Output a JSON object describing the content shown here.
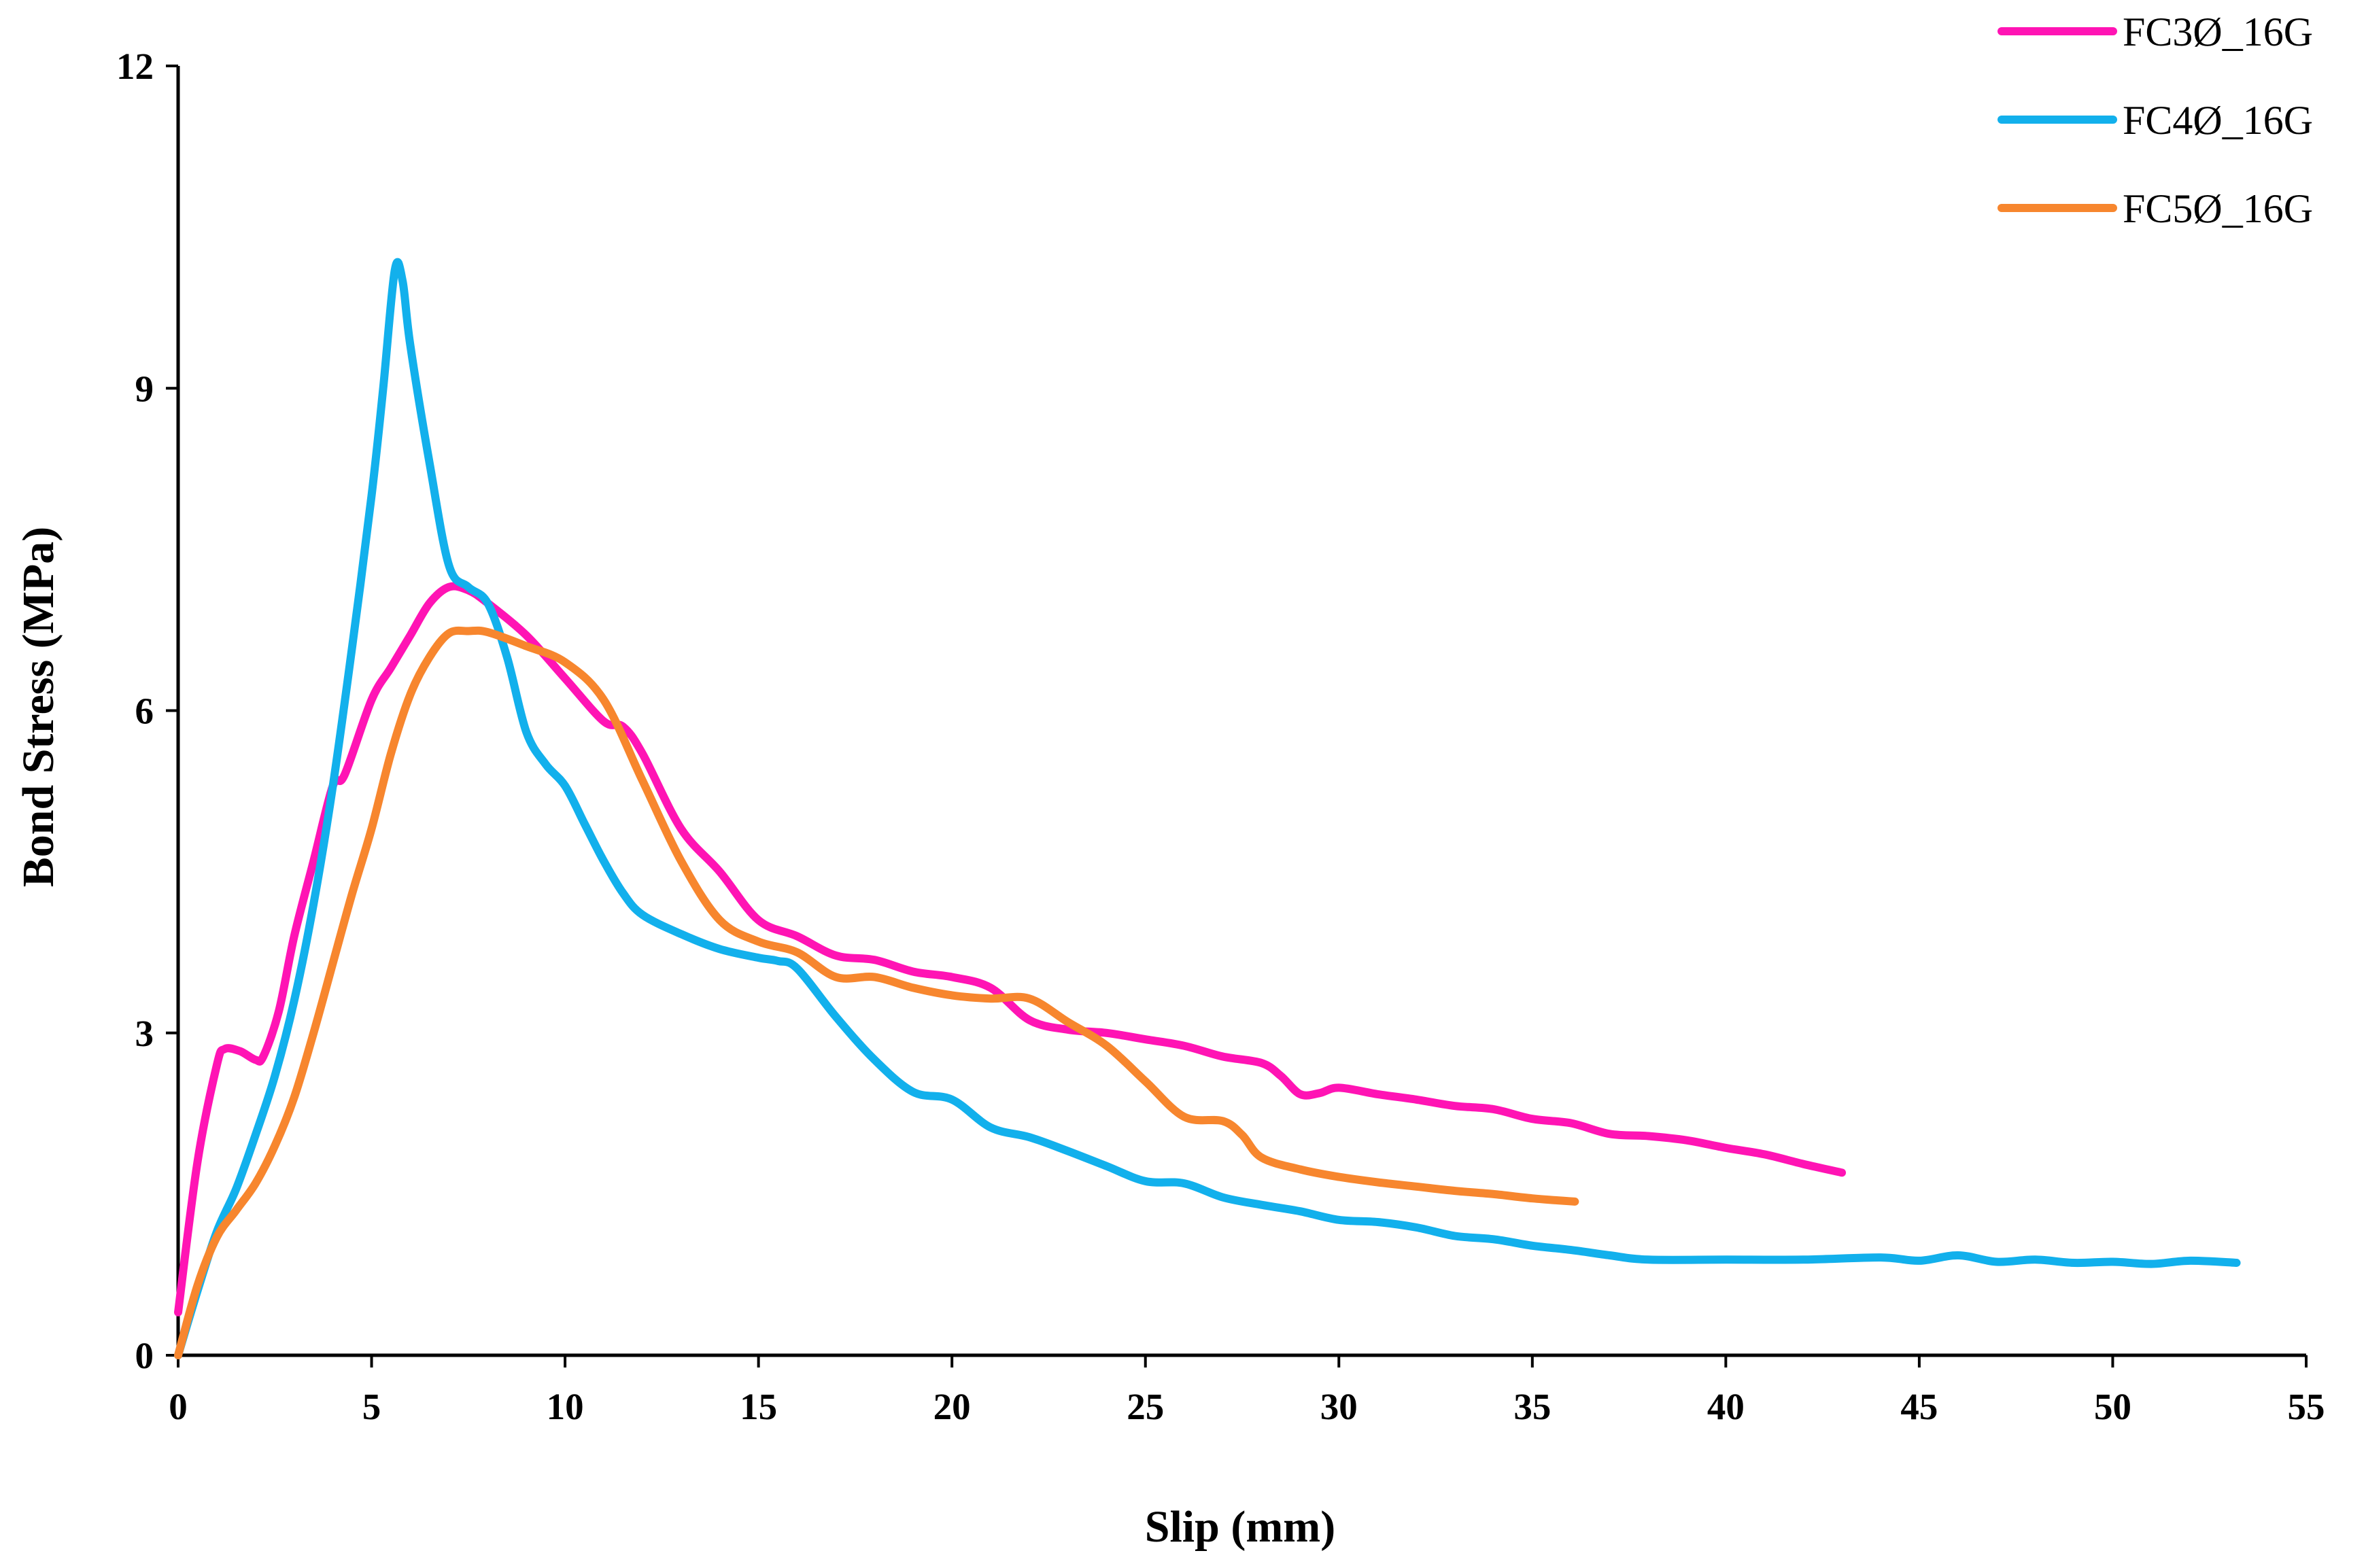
{
  "chart_data": {
    "type": "line",
    "title": "",
    "xlabel": "Slip (mm)",
    "ylabel": "Bond Stress (MPa)",
    "xlim": [
      0,
      55
    ],
    "ylim": [
      0,
      12
    ],
    "xticks": [
      0,
      5,
      10,
      15,
      20,
      25,
      30,
      35,
      40,
      45,
      50,
      55
    ],
    "yticks": [
      0,
      3,
      6,
      9,
      12
    ],
    "grid": false,
    "legend_position": "top-right",
    "series": [
      {
        "name": "FC3Ø_16G",
        "color": "#ff14b4",
        "points": [
          [
            0,
            0.4
          ],
          [
            0.5,
            1.8
          ],
          [
            1.0,
            2.7
          ],
          [
            1.2,
            2.85
          ],
          [
            1.6,
            2.83
          ],
          [
            2.0,
            2.75
          ],
          [
            2.2,
            2.78
          ],
          [
            2.6,
            3.2
          ],
          [
            3.0,
            3.9
          ],
          [
            3.5,
            4.6
          ],
          [
            4.0,
            5.3
          ],
          [
            4.3,
            5.4
          ],
          [
            5.0,
            6.1
          ],
          [
            5.5,
            6.4
          ],
          [
            6.0,
            6.7
          ],
          [
            6.5,
            7.0
          ],
          [
            7.0,
            7.15
          ],
          [
            7.5,
            7.12
          ],
          [
            8.0,
            7.0
          ],
          [
            9.0,
            6.7
          ],
          [
            10.0,
            6.3
          ],
          [
            11.0,
            5.9
          ],
          [
            11.5,
            5.85
          ],
          [
            12.0,
            5.6
          ],
          [
            13.0,
            4.9
          ],
          [
            14.0,
            4.5
          ],
          [
            15.0,
            4.05
          ],
          [
            16.0,
            3.9
          ],
          [
            17.0,
            3.72
          ],
          [
            18.0,
            3.68
          ],
          [
            19.0,
            3.57
          ],
          [
            20.0,
            3.52
          ],
          [
            21.0,
            3.42
          ],
          [
            22.0,
            3.12
          ],
          [
            23.0,
            3.03
          ],
          [
            24.0,
            3.0
          ],
          [
            25.0,
            2.94
          ],
          [
            26.0,
            2.88
          ],
          [
            27.0,
            2.78
          ],
          [
            28.0,
            2.72
          ],
          [
            28.5,
            2.6
          ],
          [
            29.0,
            2.43
          ],
          [
            29.5,
            2.44
          ],
          [
            30.0,
            2.49
          ],
          [
            31.0,
            2.43
          ],
          [
            32.0,
            2.38
          ],
          [
            33.0,
            2.32
          ],
          [
            34.0,
            2.29
          ],
          [
            35.0,
            2.2
          ],
          [
            36.0,
            2.16
          ],
          [
            37.0,
            2.06
          ],
          [
            38.0,
            2.04
          ],
          [
            39.0,
            2.0
          ],
          [
            40.0,
            1.93
          ],
          [
            41.0,
            1.87
          ],
          [
            42.0,
            1.78
          ],
          [
            43.0,
            1.7
          ]
        ]
      },
      {
        "name": "FC4Ø_16G",
        "color": "#12b0ec",
        "points": [
          [
            0,
            0.0
          ],
          [
            0.5,
            0.6
          ],
          [
            1.0,
            1.15
          ],
          [
            1.5,
            1.55
          ],
          [
            2.0,
            2.05
          ],
          [
            2.5,
            2.6
          ],
          [
            3.0,
            3.3
          ],
          [
            3.5,
            4.2
          ],
          [
            4.0,
            5.3
          ],
          [
            4.5,
            6.6
          ],
          [
            5.0,
            8.0
          ],
          [
            5.3,
            9.0
          ],
          [
            5.6,
            10.1
          ],
          [
            5.8,
            10.0
          ],
          [
            6.0,
            9.4
          ],
          [
            6.5,
            8.3
          ],
          [
            7.0,
            7.35
          ],
          [
            7.5,
            7.15
          ],
          [
            8.0,
            7.0
          ],
          [
            8.5,
            6.5
          ],
          [
            9.0,
            5.8
          ],
          [
            9.5,
            5.5
          ],
          [
            10.0,
            5.3
          ],
          [
            10.5,
            4.95
          ],
          [
            11.0,
            4.6
          ],
          [
            11.5,
            4.3
          ],
          [
            12.0,
            4.1
          ],
          [
            13.0,
            3.92
          ],
          [
            14.0,
            3.78
          ],
          [
            15.0,
            3.7
          ],
          [
            15.5,
            3.67
          ],
          [
            16.0,
            3.6
          ],
          [
            17.0,
            3.15
          ],
          [
            18.0,
            2.75
          ],
          [
            19.0,
            2.45
          ],
          [
            20.0,
            2.38
          ],
          [
            21.0,
            2.12
          ],
          [
            22.0,
            2.03
          ],
          [
            23.0,
            1.9
          ],
          [
            24.0,
            1.76
          ],
          [
            25.0,
            1.62
          ],
          [
            26.0,
            1.6
          ],
          [
            27.0,
            1.47
          ],
          [
            28.0,
            1.4
          ],
          [
            29.0,
            1.34
          ],
          [
            30.0,
            1.26
          ],
          [
            31.0,
            1.24
          ],
          [
            32.0,
            1.19
          ],
          [
            33.0,
            1.11
          ],
          [
            34.0,
            1.08
          ],
          [
            35.0,
            1.02
          ],
          [
            36.0,
            0.98
          ],
          [
            37.0,
            0.93
          ],
          [
            38.0,
            0.89
          ],
          [
            40.0,
            0.89
          ],
          [
            42.0,
            0.89
          ],
          [
            44.0,
            0.91
          ],
          [
            45.0,
            0.88
          ],
          [
            46.0,
            0.93
          ],
          [
            47.0,
            0.87
          ],
          [
            48.0,
            0.89
          ],
          [
            49.0,
            0.86
          ],
          [
            50.0,
            0.87
          ],
          [
            51.0,
            0.85
          ],
          [
            52.0,
            0.88
          ],
          [
            53.2,
            0.86
          ]
        ]
      },
      {
        "name": "FC5Ø_16G",
        "color": "#f7862e",
        "points": [
          [
            0,
            0.0
          ],
          [
            0.5,
            0.65
          ],
          [
            1.0,
            1.1
          ],
          [
            1.5,
            1.35
          ],
          [
            2.0,
            1.6
          ],
          [
            2.5,
            1.95
          ],
          [
            3.0,
            2.4
          ],
          [
            3.5,
            3.0
          ],
          [
            4.0,
            3.65
          ],
          [
            4.5,
            4.3
          ],
          [
            5.0,
            4.9
          ],
          [
            5.5,
            5.6
          ],
          [
            6.0,
            6.15
          ],
          [
            6.5,
            6.5
          ],
          [
            7.0,
            6.72
          ],
          [
            7.5,
            6.74
          ],
          [
            8.0,
            6.73
          ],
          [
            9.0,
            6.6
          ],
          [
            10.0,
            6.45
          ],
          [
            11.0,
            6.1
          ],
          [
            12.0,
            5.35
          ],
          [
            13.0,
            4.6
          ],
          [
            14.0,
            4.05
          ],
          [
            15.0,
            3.85
          ],
          [
            16.0,
            3.75
          ],
          [
            17.0,
            3.52
          ],
          [
            18.0,
            3.52
          ],
          [
            19.0,
            3.42
          ],
          [
            20.0,
            3.35
          ],
          [
            21.0,
            3.32
          ],
          [
            22.0,
            3.32
          ],
          [
            23.0,
            3.1
          ],
          [
            24.0,
            2.88
          ],
          [
            25.0,
            2.55
          ],
          [
            26.0,
            2.22
          ],
          [
            27.0,
            2.18
          ],
          [
            27.5,
            2.05
          ],
          [
            28.0,
            1.84
          ],
          [
            29.0,
            1.73
          ],
          [
            30.0,
            1.66
          ],
          [
            31.0,
            1.61
          ],
          [
            32.0,
            1.57
          ],
          [
            33.0,
            1.53
          ],
          [
            34.0,
            1.5
          ],
          [
            35.0,
            1.46
          ],
          [
            36.1,
            1.43
          ]
        ]
      }
    ]
  }
}
